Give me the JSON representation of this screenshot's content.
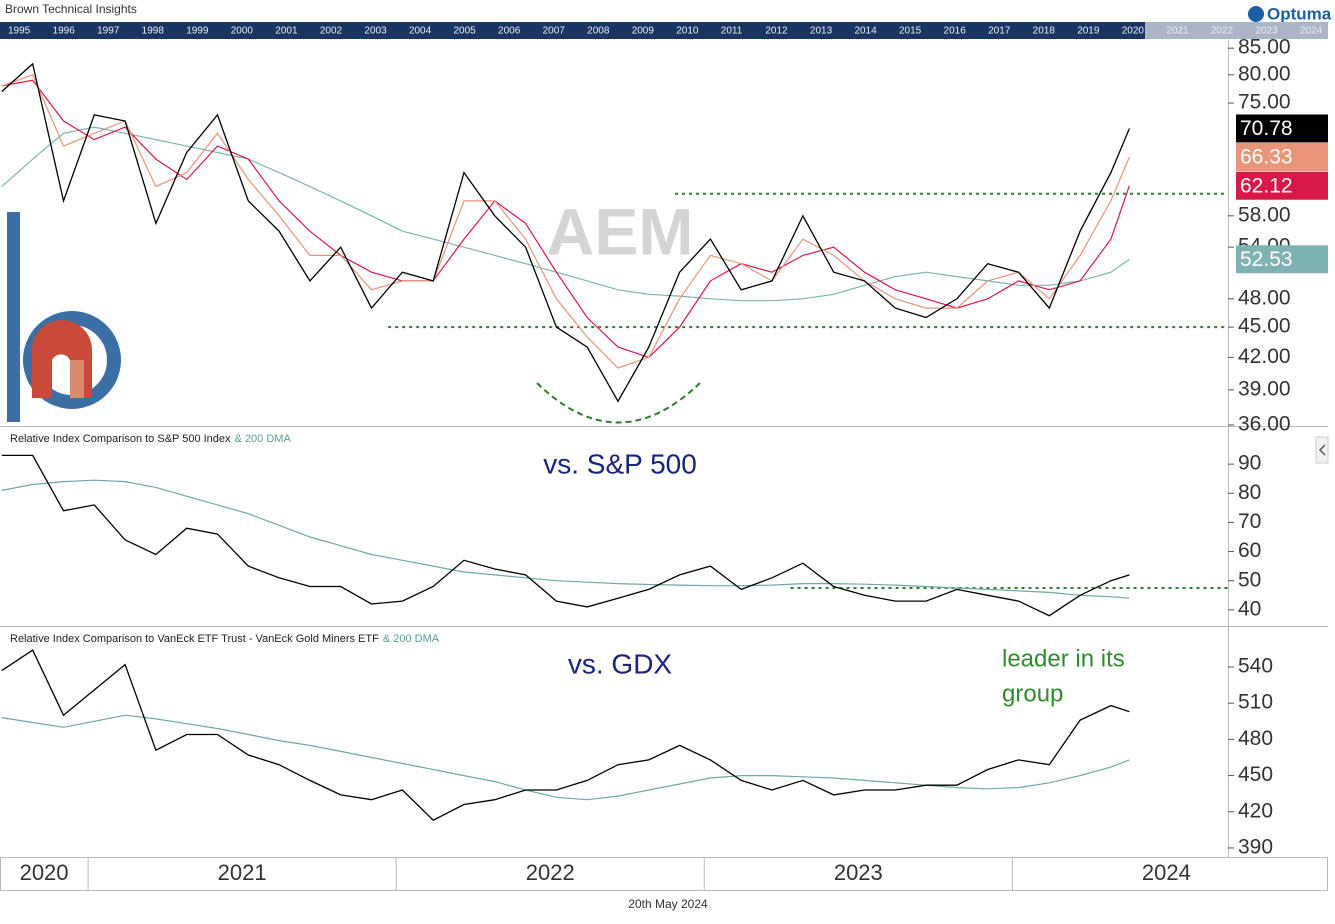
{
  "header": {
    "title": "Brown Technical Insights",
    "logo": "Optuma"
  },
  "navigator": {
    "years": [
      1995,
      1996,
      1997,
      1998,
      1999,
      2000,
      2001,
      2002,
      2003,
      2004,
      2005,
      2006,
      2007,
      2008,
      2009,
      2010,
      2011,
      2012,
      2013,
      2014,
      2015,
      2016,
      2017,
      2018,
      2019,
      2020,
      2021,
      2022,
      2023,
      2024
    ]
  },
  "chart_data": [
    {
      "type": "line",
      "watermark": "AEM",
      "log_scale": true,
      "x": [
        2020.72,
        2020.82,
        2020.92,
        2021.02,
        2021.12,
        2021.22,
        2021.32,
        2021.42,
        2021.52,
        2021.62,
        2021.72,
        2021.82,
        2021.92,
        2022.02,
        2022.12,
        2022.22,
        2022.32,
        2022.42,
        2022.52,
        2022.62,
        2022.72,
        2022.82,
        2022.92,
        2023.02,
        2023.12,
        2023.22,
        2023.32,
        2023.42,
        2023.52,
        2023.62,
        2023.72,
        2023.82,
        2023.92,
        2024.02,
        2024.12,
        2024.22,
        2024.32,
        2024.38
      ],
      "xlim": [
        2020.714,
        2024.7
      ],
      "ylim": [
        36,
        86.6
      ],
      "yticks": [
        {
          "value": 85,
          "label": "85.00"
        },
        {
          "value": 80,
          "label": "80.00"
        },
        {
          "value": 75,
          "label": "75.00"
        },
        {
          "value": 58,
          "label": "58.00"
        },
        {
          "value": 54,
          "label": "54.00"
        },
        {
          "value": 48,
          "label": "48.00"
        },
        {
          "value": 45,
          "label": "45.00"
        },
        {
          "value": 42,
          "label": "42.00"
        },
        {
          "value": 39,
          "label": "39.00"
        },
        {
          "value": 36,
          "label": "36.00"
        }
      ],
      "series": [
        {
          "color": "#000000",
          "last": 70.78,
          "values": [
            77,
            82,
            60,
            73,
            72,
            57,
            67,
            73,
            60,
            56,
            50,
            54,
            47,
            51,
            50,
            64,
            58,
            54,
            45,
            43,
            38,
            43,
            51,
            55,
            49,
            50,
            58,
            51,
            50,
            47,
            46,
            48,
            52,
            51,
            47,
            56,
            64,
            70.78
          ]
        },
        {
          "color": "#e8957a",
          "last": 66.33,
          "values": [
            78,
            80,
            68,
            70,
            72,
            62,
            64,
            70,
            63,
            58,
            53,
            53,
            49,
            50,
            50,
            60,
            60,
            55,
            48,
            44,
            41,
            42,
            48,
            53,
            52,
            50,
            55,
            53,
            50,
            48,
            47,
            47,
            50,
            51,
            48,
            53,
            60,
            66.33
          ]
        },
        {
          "color": "#d9184a",
          "last": 62.12,
          "values": [
            78,
            79,
            72,
            69,
            71,
            66,
            63,
            68,
            66,
            60,
            56,
            53,
            51,
            50,
            50,
            55,
            60,
            57,
            51,
            46,
            43,
            42,
            45,
            50,
            52,
            51,
            53,
            54,
            51,
            49,
            48,
            47,
            48,
            50,
            49,
            50,
            55,
            62.12
          ]
        },
        {
          "color": "#7fb3b3",
          "last": 52.53,
          "values": [
            62,
            66,
            70,
            71,
            70,
            69,
            68,
            67,
            66,
            64,
            62,
            60,
            58,
            56,
            55,
            54,
            53,
            52,
            51,
            50,
            49,
            48.5,
            48.3,
            48,
            47.8,
            47.8,
            48,
            48.5,
            49.5,
            50.5,
            51,
            50.5,
            50,
            49.5,
            49.5,
            50,
            51,
            52.53
          ]
        }
      ],
      "levels": [
        {
          "value": 61,
          "from": 2022.905
        },
        {
          "value": 45,
          "from": 2021.974
        }
      ]
    },
    {
      "type": "line",
      "title": "Relative Index Comparison to S&P 500 Index",
      "title_suffix": "& 200 DMA",
      "annotation": "vs. S&P 500",
      "x": [
        2020.72,
        2020.82,
        2020.92,
        2021.02,
        2021.12,
        2021.22,
        2021.32,
        2021.42,
        2021.52,
        2021.62,
        2021.72,
        2021.82,
        2021.92,
        2022.02,
        2022.12,
        2022.22,
        2022.32,
        2022.42,
        2022.52,
        2022.62,
        2022.72,
        2022.82,
        2022.92,
        2023.02,
        2023.12,
        2023.22,
        2023.32,
        2023.42,
        2023.52,
        2023.62,
        2023.72,
        2023.82,
        2023.92,
        2024.02,
        2024.12,
        2024.22,
        2024.32,
        2024.38
      ],
      "xlim": [
        2020.714,
        2024.7
      ],
      "ylim": [
        34.8,
        102.4
      ],
      "yticks": [
        40,
        50,
        60,
        70,
        80,
        90
      ],
      "series": [
        {
          "color": "#000000",
          "values": [
            93,
            93,
            74,
            76,
            64,
            59,
            68,
            66,
            55,
            51,
            48,
            48,
            42,
            43,
            48,
            57,
            54,
            52,
            43,
            41,
            44,
            47,
            52,
            55,
            47,
            51,
            56,
            48,
            45,
            43,
            43,
            47,
            45,
            43,
            38,
            45,
            50,
            52
          ]
        },
        {
          "color": "#6fa8a8",
          "values": [
            81,
            83,
            84,
            84.5,
            84,
            82,
            79,
            76,
            73,
            69,
            65,
            62,
            59,
            57,
            55,
            53,
            52,
            51,
            50,
            49.5,
            49,
            48.7,
            48.5,
            48.3,
            48.3,
            48.5,
            49,
            49,
            48.8,
            48.5,
            48,
            47.5,
            47,
            46.5,
            46,
            45,
            44.5,
            44
          ]
        }
      ],
      "levels": [
        {
          "value": 47.5,
          "from": 2023.28
        }
      ]
    },
    {
      "type": "line",
      "title": "Relative Index Comparison to VanEck ETF Trust - VanEck Gold Miners ETF",
      "title_suffix": "& 200 DMA",
      "annotation": "vs. GDX",
      "note": [
        "leader in its",
        "group"
      ],
      "x": [
        2020.72,
        2020.82,
        2020.92,
        2021.02,
        2021.12,
        2021.22,
        2021.32,
        2021.42,
        2021.52,
        2021.62,
        2021.72,
        2021.82,
        2021.92,
        2022.02,
        2022.12,
        2022.22,
        2022.32,
        2022.42,
        2022.52,
        2022.62,
        2022.72,
        2022.82,
        2022.92,
        2023.02,
        2023.12,
        2023.22,
        2023.32,
        2023.42,
        2023.52,
        2023.62,
        2023.72,
        2023.82,
        2023.92,
        2024.02,
        2024.12,
        2024.22,
        2024.32,
        2024.38
      ],
      "xlim": [
        2020.714,
        2024.7
      ],
      "ylim": [
        382.5,
        572.3
      ],
      "yticks": [
        390,
        420,
        450,
        480,
        510,
        540
      ],
      "xticks": [
        2020,
        2021,
        2022,
        2023,
        2024
      ],
      "series": [
        {
          "color": "#000000",
          "values": [
            537,
            554,
            500,
            521,
            542,
            471,
            484,
            484,
            467,
            459,
            446,
            434,
            430,
            438,
            413,
            426,
            430,
            438,
            438,
            446,
            459,
            463,
            475,
            463,
            446,
            438,
            446,
            434,
            438,
            438,
            442,
            442,
            455,
            463,
            459,
            496,
            508,
            503
          ]
        },
        {
          "color": "#6fa8a8",
          "values": [
            498,
            494,
            490,
            495,
            500,
            497,
            493,
            489,
            484,
            479,
            475,
            470,
            465,
            460,
            455,
            450,
            445,
            438,
            432,
            430,
            433,
            438,
            443,
            448,
            450,
            450,
            449,
            448,
            446,
            444,
            442,
            440,
            439,
            440,
            444,
            450,
            457,
            463
          ]
        }
      ]
    }
  ],
  "footer": {
    "date": "20th May 2024"
  }
}
